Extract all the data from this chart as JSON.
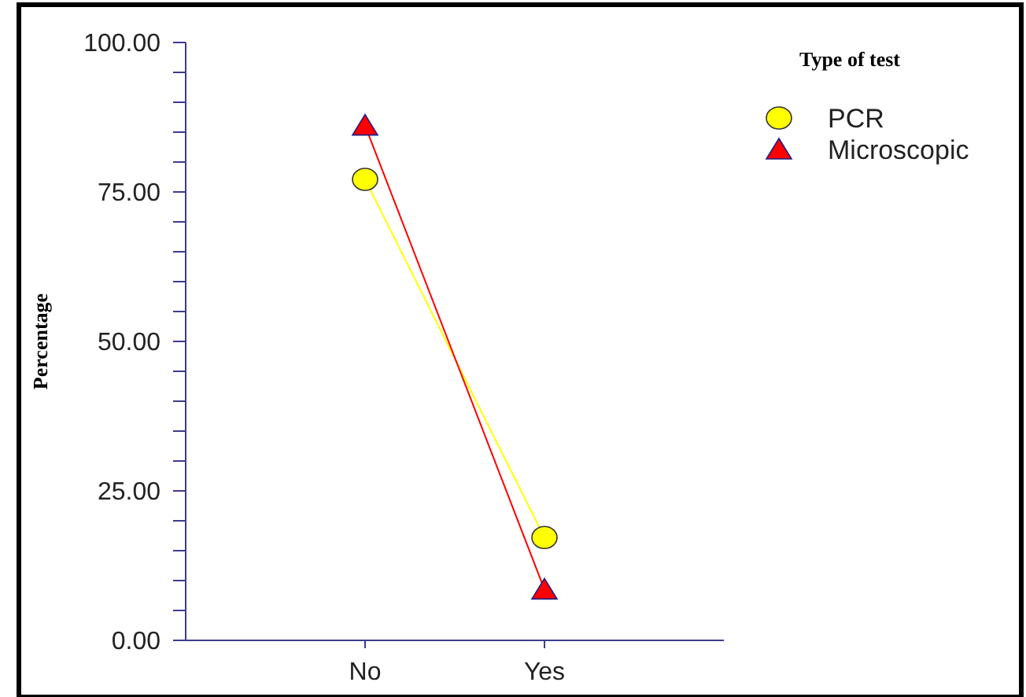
{
  "chart_data": {
    "type": "line",
    "ylabel": "Percentage",
    "legend_title": "Type of test",
    "categories": [
      "No",
      "Yes"
    ],
    "series": [
      {
        "name": "PCR",
        "color": "#ffff00",
        "marker": "circle",
        "values": [
          77.1,
          17.2
        ]
      },
      {
        "name": "Microscopic",
        "color": "#ff0000",
        "marker": "triangle",
        "values": [
          86.1,
          8.5
        ]
      }
    ],
    "ylim": [
      0,
      100
    ],
    "yticks": [
      {
        "value": 0,
        "label": "0.00"
      },
      {
        "value": 5,
        "label": null
      },
      {
        "value": 10,
        "label": null
      },
      {
        "value": 15,
        "label": null
      },
      {
        "value": 20,
        "label": null
      },
      {
        "value": 25,
        "label": "25.00"
      },
      {
        "value": 30,
        "label": null
      },
      {
        "value": 35,
        "label": null
      },
      {
        "value": 40,
        "label": null
      },
      {
        "value": 45,
        "label": null
      },
      {
        "value": 50,
        "label": "50.00"
      },
      {
        "value": 55,
        "label": null
      },
      {
        "value": 60,
        "label": null
      },
      {
        "value": 65,
        "label": null
      },
      {
        "value": 70,
        "label": null
      },
      {
        "value": 75,
        "label": "75.00"
      },
      {
        "value": 80,
        "label": null
      },
      {
        "value": 85,
        "label": null
      },
      {
        "value": 90,
        "label": null
      },
      {
        "value": 95,
        "label": null
      },
      {
        "value": 100,
        "label": "100.00"
      }
    ],
    "legend": "top right",
    "line_style": "solid",
    "grid": false
  }
}
